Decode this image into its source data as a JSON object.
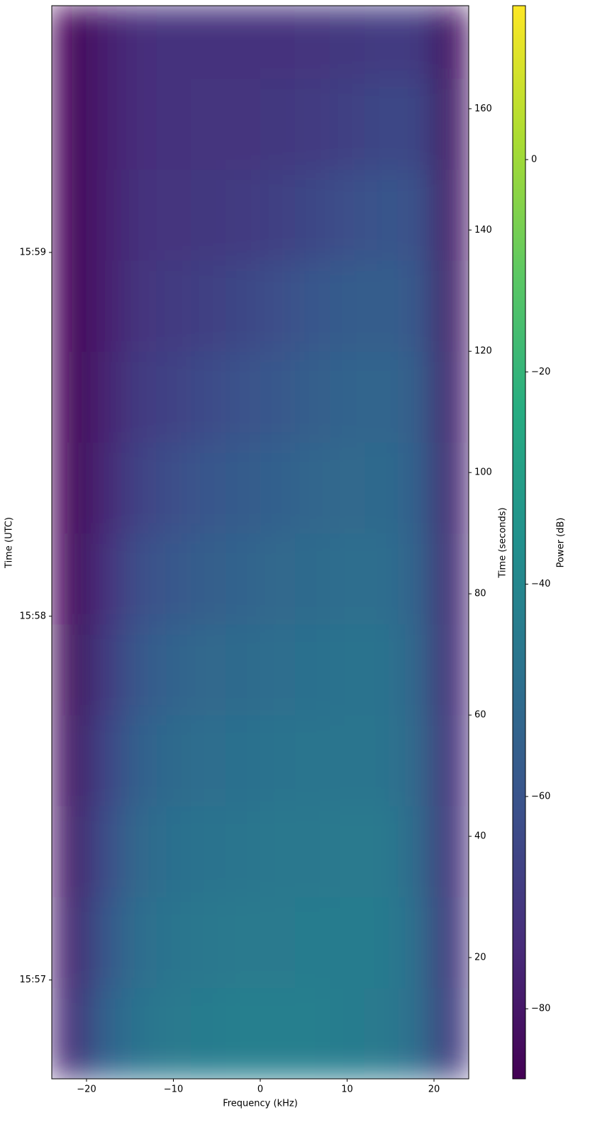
{
  "chart_data": {
    "type": "heatmap",
    "xlabel": "Frequency (kHz)",
    "ylabel": "Time (seconds)",
    "y2label": "Time (UTC)",
    "colorbar_label": "Power (dB)",
    "colormap": "viridis",
    "xbins": [
      -24,
      -20,
      -16,
      -12,
      -8,
      -4,
      0,
      4,
      8,
      12,
      16,
      20,
      24
    ],
    "ybins": [
      0,
      15,
      30,
      45,
      60,
      75,
      90,
      105,
      120,
      135,
      150,
      165,
      177
    ],
    "values": [
      [
        -75,
        -55,
        -48,
        -45,
        -44,
        -43,
        -43,
        -43,
        -44,
        -45,
        -50,
        -70
      ],
      [
        -78,
        -60,
        -50,
        -47,
        -46,
        -45,
        -45,
        -44,
        -44,
        -44,
        -50,
        -72
      ],
      [
        -80,
        -63,
        -52,
        -49,
        -48,
        -47,
        -46,
        -46,
        -45,
        -45,
        -51,
        -73
      ],
      [
        -82,
        -66,
        -55,
        -51,
        -50,
        -49,
        -48,
        -47,
        -47,
        -47,
        -52,
        -74
      ],
      [
        -84,
        -70,
        -58,
        -54,
        -52,
        -51,
        -50,
        -49,
        -48,
        -48,
        -53,
        -75
      ],
      [
        -85,
        -73,
        -62,
        -58,
        -56,
        -54,
        -52,
        -51,
        -50,
        -50,
        -54,
        -76
      ],
      [
        -86,
        -76,
        -66,
        -62,
        -59,
        -57,
        -55,
        -53,
        -52,
        -51,
        -55,
        -77
      ],
      [
        -86,
        -77,
        -69,
        -66,
        -63,
        -61,
        -58,
        -56,
        -54,
        -53,
        -56,
        -78
      ],
      [
        -86,
        -78,
        -71,
        -69,
        -67,
        -65,
        -62,
        -59,
        -57,
        -56,
        -58,
        -79
      ],
      [
        -86,
        -78,
        -72,
        -71,
        -70,
        -69,
        -67,
        -65,
        -62,
        -60,
        -61,
        -80
      ],
      [
        -86,
        -78,
        -73,
        -72,
        -71,
        -71,
        -70,
        -69,
        -67,
        -65,
        -65,
        -81
      ],
      [
        -86,
        -78,
        -73,
        -72,
        -72,
        -72,
        -72,
        -71,
        -70,
        -69,
        -69,
        -82
      ]
    ],
    "xlim": [
      -24,
      24
    ],
    "xticks": [
      {
        "value": -20,
        "label": "−20"
      },
      {
        "value": -10,
        "label": "−10"
      },
      0,
      10,
      20
    ],
    "ylim": [
      0,
      177
    ],
    "yticks": [
      20,
      40,
      60,
      80,
      100,
      120,
      140,
      160
    ],
    "y2lim": [
      0,
      177
    ],
    "y2ticks": [
      {
        "value": 16.3,
        "label": "15:57"
      },
      {
        "value": 76.3,
        "label": "15:58"
      },
      {
        "value": 136.3,
        "label": "15:59"
      }
    ],
    "clim": [
      -86.6,
      14.5
    ],
    "cticks": [
      {
        "value": -80,
        "label": "−80"
      },
      {
        "value": -60,
        "label": "−60"
      },
      {
        "value": -40,
        "label": "−40"
      },
      {
        "value": -20,
        "label": "−20"
      },
      0
    ]
  }
}
